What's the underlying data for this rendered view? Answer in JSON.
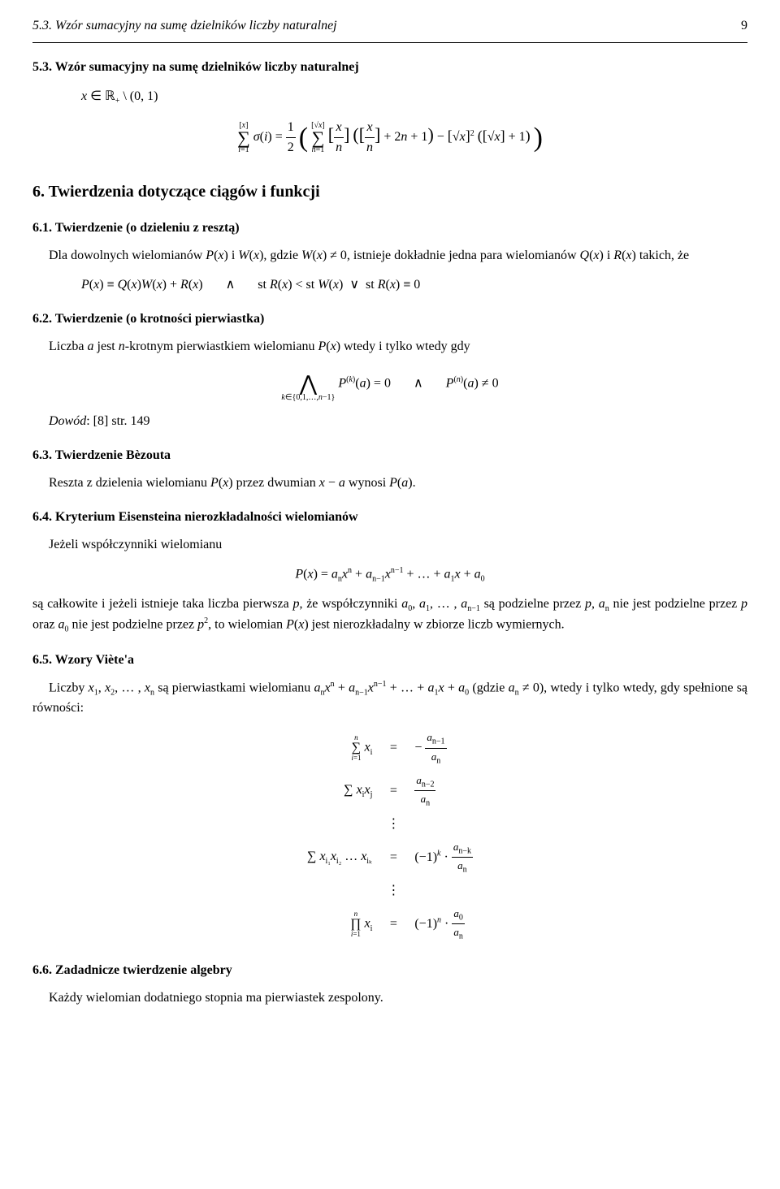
{
  "header": {
    "section_ref": "5.3. Wzór sumacyjny na sumę dzielników liczby naturalnej",
    "page_number": "9"
  },
  "sec53": {
    "title": "5.3. Wzór sumacyjny na sumę dzielników liczby naturalnej",
    "domain_line": "x ∈ ℝ₊ \\ (0, 1)",
    "formula": "∑_{i=1}^{[x]} σ(i) = ½ ( ∑_{n=1}^{[√x]} [x/n] ( [x/n] + 2n + 1 ) − [√x]² ( [√x] + 1 ) )"
  },
  "sec6": {
    "title": "6. Twierdzenia dotyczące ciągów i funkcji"
  },
  "sec61": {
    "title": "6.1. Twierdzenie (o dzieleniu z resztą)",
    "body": "Dla dowolnych wielomianów P(x) i W(x), gdzie W(x) ≠ 0, istnieje dokładnie jedna para wielomianów Q(x) i R(x) takich, że",
    "formula": "P(x) ≡ Q(x)W(x) + R(x)     ∧     st R(x) < st W(x)  ∨  st R(x) ≡ 0"
  },
  "sec62": {
    "title": "6.2. Twierdzenie (o krotności pierwiastka)",
    "body": "Liczba a jest n-krotnym pierwiastkiem wielomianu P(x) wtedy i tylko wtedy gdy",
    "formula": "⋀_{k∈{0,1,…,n−1}} P^{(k)}(a) = 0     ∧     P^{(n)}(a) ≠ 0",
    "proof_ref": "Dowód: [8] str. 149"
  },
  "sec63": {
    "title": "6.3. Twierdzenie Bèzouta",
    "body": "Reszta z dzielenia wielomianu P(x) przez dwumian x − a wynosi P(a)."
  },
  "sec64": {
    "title": "6.4. Kryterium Eisensteina nierozkładalności wielomianów",
    "lead": "Jeżeli współczynniki wielomianu",
    "poly": "P(x) = aₙxⁿ + aₙ₋₁xⁿ⁻¹ + … + a₁x + a₀",
    "body": "są całkowite i jeżeli istnieje taka liczba pierwsza p, że współczynniki a₀, a₁, … , aₙ₋₁ są podzielne przez p, aₙ nie jest podzielne przez p oraz a₀ nie jest podzielne przez p², to wielomian P(x) jest nierozkładalny w zbiorze liczb wymiernych."
  },
  "sec65": {
    "title": "6.5. Wzory Viète'a",
    "body": "Liczby x₁, x₂, … , xₙ są pierwiastkami wielomianu aₙxⁿ + aₙ₋₁xⁿ⁻¹ + … + a₁x + a₀ (gdzie aₙ ≠ 0), wtedy i tylko wtedy, gdy spełnione są równości:",
    "rows": {
      "r1_lhs": "∑_{i=1}^{n} xᵢ",
      "r1_eq": "=",
      "r1_rhs": "− aₙ₋₁ / aₙ",
      "r2_lhs": "∑ xᵢxⱼ",
      "r2_eq": "=",
      "r2_rhs": "aₙ₋₂ / aₙ",
      "rk_lhs": "∑ xᵢ₁xᵢ₂ … xᵢₖ",
      "rk_eq": "=",
      "rk_rhs": "(−1)ᵏ · aₙ₋ₖ / aₙ",
      "rn_lhs": "∏_{i=1}^{n} xᵢ",
      "rn_eq": "=",
      "rn_rhs": "(−1)ⁿ · a₀ / aₙ"
    },
    "vdots": "⋮"
  },
  "sec66": {
    "title": "6.6. Zadadnicze twierdzenie algebry",
    "body": "Każdy wielomian dodatniego stopnia ma pierwiastek zespolony."
  }
}
